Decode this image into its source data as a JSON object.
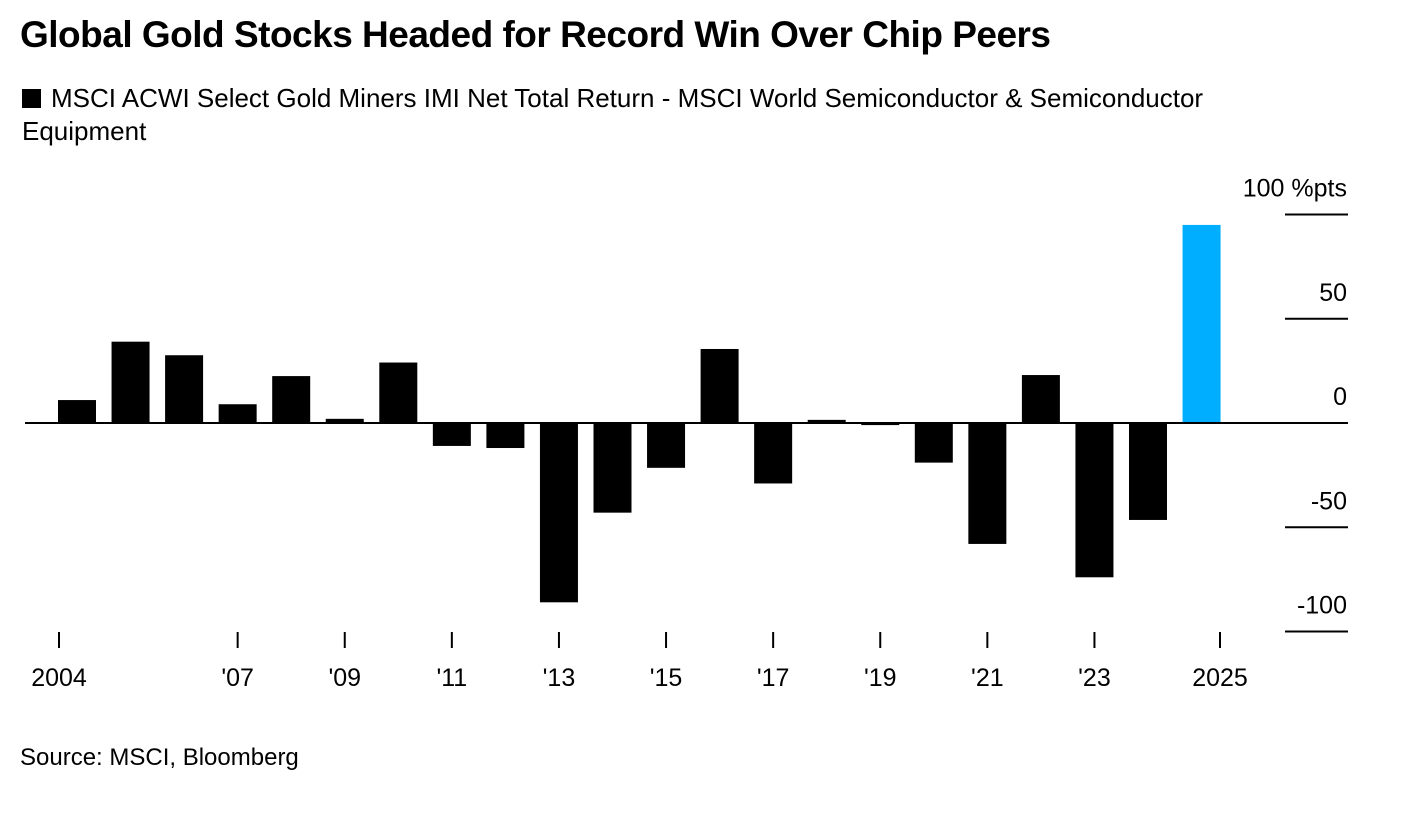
{
  "chart_data": {
    "type": "bar",
    "title": "Global Gold Stocks Headed for Record Win Over Chip Peers",
    "legend": "MSCI ACWI Select Gold Miners IMI Net Total Return - MSCI World Semiconductor & Semiconductor Equipment",
    "source": "Source: MSCI, Bloomberg",
    "xlabel": "",
    "ylabel": "%pts",
    "ylim": [
      -100,
      100
    ],
    "yticks": [
      {
        "value": 100,
        "label": "100 %pts"
      },
      {
        "value": 50,
        "label": "50"
      },
      {
        "value": 0,
        "label": "0"
      },
      {
        "value": -50,
        "label": "-50"
      },
      {
        "value": -100,
        "label": "-100"
      }
    ],
    "categories": [
      2004,
      2005,
      2006,
      2007,
      2008,
      2009,
      2010,
      2011,
      2012,
      2013,
      2014,
      2015,
      2016,
      2017,
      2018,
      2019,
      2020,
      2021,
      2022,
      2023,
      2024,
      2025
    ],
    "values": [
      11,
      39,
      32.5,
      9,
      22.5,
      2,
      29,
      -11,
      -12,
      -86,
      -43,
      -21.5,
      35.5,
      -29,
      1.5,
      -1,
      -19,
      -58,
      23,
      -74,
      -46.5,
      95
    ],
    "highlight": {
      "category": 2025,
      "color": "#00AEFF"
    },
    "bar_color": "#000000",
    "xticks": [
      {
        "year": 2004,
        "label": "2004"
      },
      {
        "year": 2007,
        "label": "'07"
      },
      {
        "year": 2009,
        "label": "'09"
      },
      {
        "year": 2011,
        "label": "'11"
      },
      {
        "year": 2013,
        "label": "'13"
      },
      {
        "year": 2015,
        "label": "'15"
      },
      {
        "year": 2017,
        "label": "'17"
      },
      {
        "year": 2019,
        "label": "'19"
      },
      {
        "year": 2021,
        "label": "'21"
      },
      {
        "year": 2023,
        "label": "'23"
      },
      {
        "year": 2025,
        "label": "2025"
      }
    ],
    "grid": "right-side short ticks",
    "legend_position": "top-left"
  }
}
